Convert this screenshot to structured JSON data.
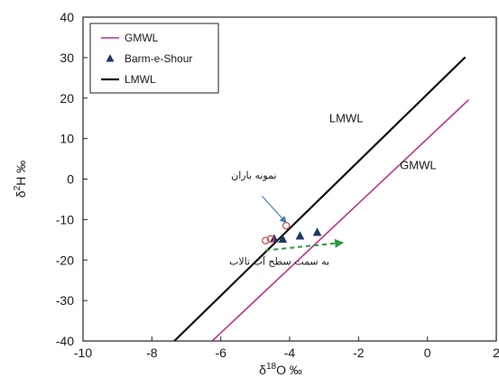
{
  "chart_data": {
    "type": "scatter",
    "xlabel": "δ18O ‰",
    "xlabel_main": "δ",
    "xlabel_sup": "18",
    "xlabel_tail": "O ‰",
    "ylabel": "δ2H ‰",
    "ylabel_main": "δ",
    "ylabel_sup": "2",
    "ylabel_tail": "H ‰",
    "xlim": [
      -10,
      2
    ],
    "ylim": [
      -40,
      40
    ],
    "x_ticks": [
      -10,
      -8,
      -6,
      -4,
      -2,
      0,
      2
    ],
    "y_ticks": [
      -40,
      -30,
      -20,
      -10,
      0,
      10,
      20,
      30,
      40
    ],
    "grid": false,
    "legend_position": "top-left",
    "lines": [
      {
        "name": "GMWL",
        "color": "#c0308a",
        "slope": 8,
        "intercept": 10,
        "x_range": [
          -6.25,
          1.2
        ]
      },
      {
        "name": "LMWL",
        "color": "#111111",
        "slope": 8.3,
        "intercept": 21,
        "x_range": [
          -7.35,
          1.1
        ]
      }
    ],
    "line_labels": [
      {
        "text": "LMWL",
        "x": -2.85,
        "y": 14
      },
      {
        "text": "GMWL",
        "x": -0.8,
        "y": 2.5
      }
    ],
    "series": [
      {
        "name": "Barm-e-Shour",
        "marker": "triangle",
        "color": "#1f3864",
        "points": [
          [
            -4.45,
            -14.8
          ],
          [
            -4.2,
            -14.9
          ],
          [
            -3.7,
            -14.1
          ],
          [
            -3.2,
            -13.2
          ]
        ]
      },
      {
        "marker": "open-circle",
        "color": "#d05050",
        "points": [
          [
            -4.7,
            -15.2
          ],
          [
            -4.55,
            -14.8
          ],
          [
            -4.1,
            -11.5
          ]
        ]
      }
    ],
    "legend": [
      {
        "label": "GMWL",
        "symbol": "line",
        "color": "#c0308a"
      },
      {
        "label": "Barm-e-Shour",
        "symbol": "triangle",
        "color": "#1f3864"
      },
      {
        "label": "LMWL",
        "symbol": "line",
        "color": "#111111"
      }
    ],
    "annotations": [
      {
        "text": "نمونه باران",
        "color": "#1a1a1a",
        "arrow_color": "#4a7fb5",
        "x": -5.7,
        "y": 0.1,
        "arrow_from": [
          -4.8,
          -4.2
        ],
        "arrow_to": [
          -4.1,
          -10.8
        ]
      },
      {
        "text": "به سمت سطح آب تالاب",
        "color": "#1a1a1a",
        "arrow_color": "#2a9a3a",
        "x": -4.3,
        "y": -21.2,
        "arrow_from": [
          -4.7,
          -17.6
        ],
        "arrow_to": [
          -2.45,
          -15.7
        ]
      }
    ]
  }
}
